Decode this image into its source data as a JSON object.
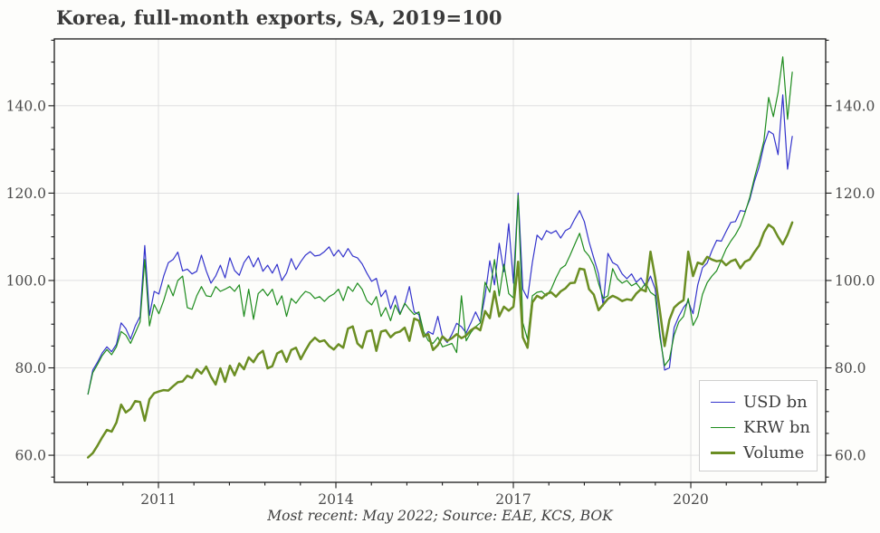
{
  "title": "Korea, full-month exports, SA, 2019=100",
  "footer": "Most recent: May 2022; Source: EAE, KCS, BOK",
  "colors": {
    "background": "#fdfdfb",
    "grid": "#dcdcdc",
    "frame": "#1a1a1a",
    "tick_label": "#4a4a4a",
    "title_text": "#3a3a3a",
    "legend_border": "#cfcfcf",
    "usd": "#3333cc",
    "krw": "#1e8c1e",
    "volume": "#6b8e23"
  },
  "chart_data": {
    "type": "line",
    "title": "Korea, full-month exports, SA, 2019=100",
    "xlabel": "",
    "ylabel": "",
    "grid": true,
    "legend_position": "bottom-right",
    "x_axis": {
      "xlim": [
        2009.24,
        2022.28
      ],
      "ticks_major": [
        2011,
        2014,
        2017,
        2020
      ],
      "tick_labels": [
        "2011",
        "2014",
        "2017",
        "2020"
      ],
      "minor_start": 2009.8,
      "minor_step": 0.6
    },
    "y_axis": {
      "ylim": [
        53.8,
        155.3
      ],
      "ticks_major": [
        60,
        80,
        100,
        120,
        140
      ],
      "tick_labels": [
        "60.0",
        "80.0",
        "100.0",
        "120.0",
        "140.0"
      ],
      "minor_start": 55,
      "minor_step": 5,
      "sides": "both"
    },
    "x_start": 2009.81,
    "x_step": 0.0799,
    "series": [
      {
        "name": "USD bn",
        "color": "#3333cc",
        "width": 1.2,
        "values": [
          74.0,
          79.5,
          81.3,
          83.4,
          84.8,
          83.7,
          85.4,
          90.3,
          89.0,
          86.6,
          89.6,
          91.8,
          108.0,
          92.0,
          97.5,
          96.9,
          101.0,
          104.1,
          104.8,
          106.5,
          102.2,
          102.6,
          101.5,
          102.1,
          105.8,
          102.2,
          99.4,
          101.0,
          103.5,
          100.6,
          105.2,
          102.3,
          101.2,
          104.1,
          105.6,
          103.1,
          105.2,
          102.1,
          103.5,
          101.7,
          103.7,
          100.0,
          101.7,
          105.0,
          102.5,
          104.3,
          105.8,
          106.6,
          105.6,
          105.8,
          106.6,
          107.7,
          105.6,
          107.0,
          105.4,
          107.3,
          105.6,
          105.2,
          103.8,
          101.7,
          99.8,
          100.5,
          96.3,
          97.8,
          93.5,
          96.5,
          92.4,
          94.5,
          98.6,
          92.8,
          92.2,
          87.0,
          88.3,
          87.7,
          91.8,
          87.0,
          85.8,
          87.7,
          90.2,
          89.4,
          88.0,
          90.3,
          92.8,
          90.5,
          96.5,
          104.5,
          99.0,
          108.5,
          102.0,
          113.0,
          99.4,
          120.0,
          98.0,
          95.9,
          104.1,
          110.4,
          109.3,
          111.4,
          110.8,
          111.4,
          109.7,
          111.4,
          112.0,
          114.1,
          116.0,
          113.5,
          108.9,
          105.2,
          101.5,
          94.2,
          106.2,
          104.1,
          103.5,
          101.5,
          100.4,
          101.5,
          99.6,
          100.6,
          98.6,
          101.0,
          98.0,
          88.0,
          79.5,
          80.0,
          89.2,
          91.8,
          93.8,
          95.2,
          92.4,
          99.0,
          102.9,
          104.0,
          106.8,
          109.2,
          109.0,
          111.2,
          113.3,
          113.5,
          116.0,
          115.8,
          118.5,
          122.7,
          126.0,
          131.0,
          134.2,
          133.5,
          128.8,
          142.5,
          125.5,
          133.0
        ]
      },
      {
        "name": "KRW bn",
        "color": "#1e8c1e",
        "width": 1.2,
        "values": [
          74.0,
          78.9,
          80.8,
          82.8,
          84.2,
          83.0,
          84.8,
          88.3,
          87.5,
          85.6,
          88.0,
          90.5,
          104.8,
          89.6,
          94.5,
          92.4,
          95.4,
          99.0,
          96.5,
          100.0,
          101.0,
          93.8,
          93.4,
          96.5,
          98.6,
          96.5,
          96.3,
          98.6,
          97.5,
          98.0,
          98.6,
          97.5,
          99.0,
          91.8,
          98.0,
          91.1,
          97.0,
          98.0,
          96.5,
          98.0,
          94.4,
          96.5,
          91.8,
          95.9,
          94.8,
          96.3,
          97.5,
          97.1,
          95.9,
          96.3,
          95.2,
          96.3,
          96.9,
          98.0,
          95.4,
          98.6,
          97.5,
          99.4,
          98.0,
          95.4,
          94.4,
          96.3,
          91.8,
          93.8,
          90.8,
          94.4,
          92.2,
          94.8,
          93.4,
          92.2,
          92.8,
          88.3,
          86.2,
          85.6,
          87.0,
          84.8,
          85.2,
          85.6,
          83.5,
          96.5,
          86.2,
          88.1,
          89.4,
          90.3,
          99.6,
          97.3,
          104.8,
          96.5,
          103.7,
          97.0,
          96.0,
          119.5,
          90.3,
          86.5,
          96.5,
          97.3,
          97.5,
          96.5,
          98.0,
          100.6,
          102.7,
          103.5,
          105.8,
          108.3,
          110.8,
          106.9,
          105.6,
          103.5,
          99.4,
          95.9,
          96.5,
          102.7,
          100.4,
          99.4,
          100.0,
          98.8,
          99.4,
          98.0,
          99.4,
          97.3,
          96.5,
          87.0,
          80.5,
          82.0,
          87.5,
          90.5,
          91.8,
          95.9,
          89.7,
          91.8,
          96.8,
          99.5,
          101.0,
          102.2,
          104.7,
          107.2,
          109.0,
          110.5,
          112.5,
          115.5,
          119.0,
          123.5,
          127.5,
          132.0,
          141.9,
          137.5,
          143.0,
          151.2,
          136.9,
          147.7
        ]
      },
      {
        "name": "Volume",
        "color": "#6b8e23",
        "width": 2.5,
        "values": [
          59.5,
          60.5,
          62.2,
          64.1,
          65.8,
          65.4,
          67.5,
          71.6,
          69.8,
          70.6,
          72.4,
          72.2,
          67.9,
          72.8,
          74.2,
          74.6,
          74.9,
          74.8,
          75.8,
          76.7,
          76.9,
          78.2,
          77.7,
          79.7,
          78.7,
          80.3,
          78.0,
          76.2,
          79.9,
          76.8,
          80.5,
          78.3,
          81.0,
          79.7,
          82.4,
          81.3,
          83.1,
          83.9,
          79.9,
          80.4,
          83.3,
          83.9,
          81.4,
          84.1,
          84.6,
          82.0,
          84.0,
          85.8,
          86.9,
          86.0,
          86.3,
          85.0,
          84.2,
          85.4,
          84.6,
          89.0,
          89.5,
          85.6,
          84.6,
          88.3,
          88.6,
          83.9,
          88.3,
          88.6,
          87.0,
          88.0,
          88.3,
          89.2,
          86.2,
          91.3,
          90.8,
          87.2,
          87.7,
          84.1,
          85.2,
          87.2,
          86.2,
          86.8,
          87.7,
          86.8,
          87.4,
          88.6,
          89.3,
          88.6,
          93.0,
          91.4,
          97.5,
          91.8,
          94.0,
          93.1,
          94.0,
          104.3,
          87.0,
          84.6,
          95.0,
          96.5,
          95.9,
          96.9,
          97.3,
          96.3,
          97.5,
          98.2,
          99.4,
          99.5,
          102.7,
          102.5,
          98.0,
          96.8,
          93.2,
          94.5,
          95.8,
          96.5,
          96.0,
          95.3,
          95.7,
          95.5,
          97.0,
          98.0,
          97.5,
          106.6,
          100.6,
          93.0,
          85.0,
          91.0,
          93.8,
          94.8,
          95.5,
          106.6,
          101.0,
          104.1,
          103.7,
          105.4,
          104.8,
          104.4,
          104.6,
          103.5,
          104.4,
          104.8,
          102.8,
          104.3,
          104.8,
          106.5,
          108.0,
          111.0,
          112.8,
          112.0,
          110.0,
          108.3,
          110.5,
          113.3
        ]
      }
    ]
  }
}
